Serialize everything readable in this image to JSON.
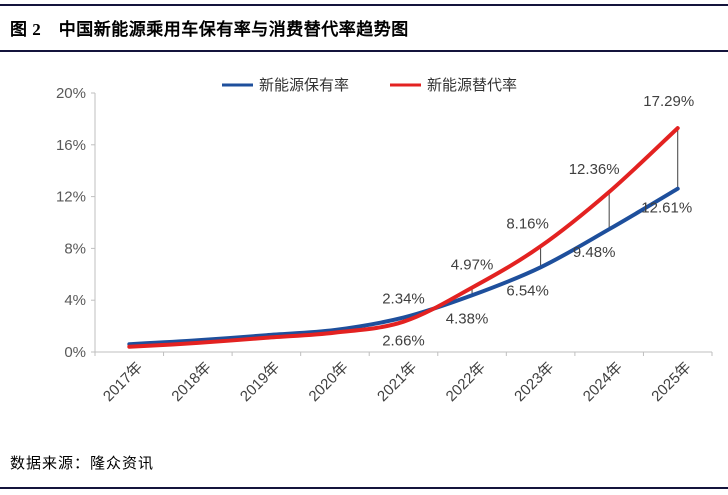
{
  "header": {
    "title": "图 2　中国新能源乘用车保有率与消费替代率趋势图"
  },
  "footer": {
    "source": "数据来源：隆众资讯"
  },
  "chart_data": {
    "type": "line",
    "title": "中国新能源乘用车保有率与消费替代率趋势图",
    "figure_label": "图 2",
    "categories": [
      "2017年",
      "2018年",
      "2019年",
      "2020年",
      "2021年",
      "2022年",
      "2023年",
      "2024年",
      "2025年"
    ],
    "y_ticks": [
      "0%",
      "4%",
      "8%",
      "12%",
      "16%",
      "20%"
    ],
    "ylim": [
      0,
      20
    ],
    "ylabel": "",
    "xlabel": "",
    "grid": false,
    "legend_position": "top-center",
    "series": [
      {
        "name": "新能源保有率",
        "color": "#1e4f9c",
        "values": [
          0.6,
          0.9,
          1.3,
          1.7,
          2.66,
          4.38,
          6.54,
          9.48,
          12.61
        ],
        "labels": [
          "",
          "",
          "",
          "",
          "2.66%",
          "4.38%",
          "6.54%",
          "9.48%",
          "12.61%"
        ]
      },
      {
        "name": "新能源替代率",
        "color": "#e32221",
        "values": [
          0.4,
          0.7,
          1.1,
          1.5,
          2.34,
          4.97,
          8.16,
          12.36,
          17.29
        ],
        "labels": [
          "",
          "",
          "",
          "",
          "2.34%",
          "4.97%",
          "8.16%",
          "12.36%",
          "17.29%"
        ]
      }
    ],
    "connector_years": [
      "2021年",
      "2022年",
      "2023年",
      "2024年",
      "2025年"
    ],
    "label_color": "#404040",
    "axis_color": "#bfbfbf",
    "tick_label_color": "#595959"
  }
}
